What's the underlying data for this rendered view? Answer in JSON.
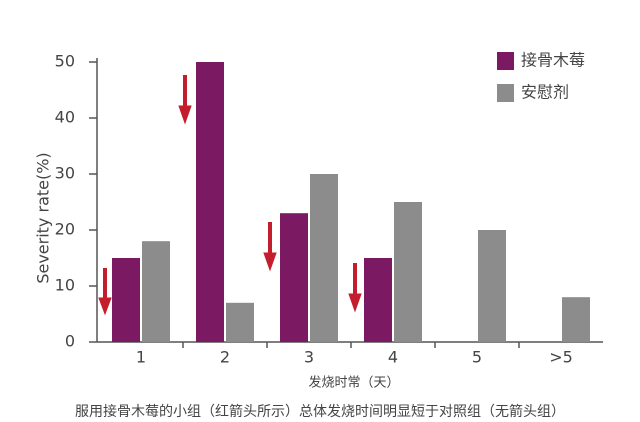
{
  "chart_data": {
    "type": "bar",
    "ylabel": "Severity rate(%)",
    "xlabel": "发烧时常（天）",
    "caption": "服用接骨木莓的小组（红箭头所示）总体发烧时间明显短于对照组（无箭头组）",
    "categories": [
      "1",
      "2",
      "3",
      "4",
      "5",
      ">5"
    ],
    "series": [
      {
        "name": "接骨木莓",
        "color": "#7b1a63",
        "values": [
          15,
          50,
          23,
          15,
          null,
          null
        ]
      },
      {
        "name": "安慰剂",
        "color": "#8c8c8c",
        "values": [
          18,
          7,
          30,
          25,
          20,
          8
        ]
      }
    ],
    "ylim": [
      0,
      50
    ],
    "yticks": [
      0,
      10,
      20,
      30,
      40,
      50
    ],
    "legend": "upper right"
  }
}
